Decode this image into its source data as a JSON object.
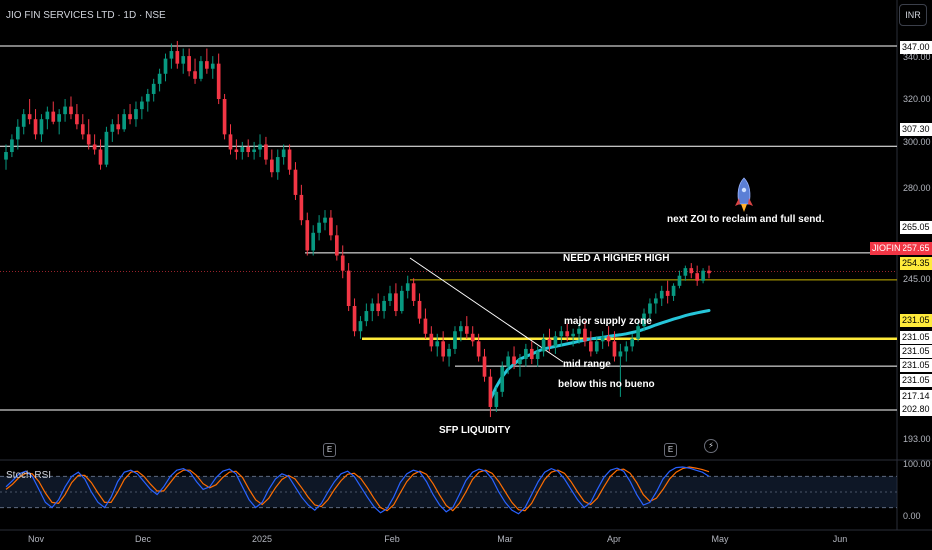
{
  "chart_data": {
    "type": "candlestick",
    "title": "JIO FIN SERVICES LTD · 1D · NSE",
    "currency": "INR",
    "ylim": [
      190,
      350
    ],
    "y_ticks": [
      "340.00",
      "320.00",
      "300.00",
      "280.00",
      "245.00",
      "193.00"
    ],
    "x_ticks": [
      "Nov",
      "Dec",
      "2025",
      "Feb",
      "Mar",
      "Apr",
      "May",
      "Jun"
    ],
    "price_levels": [
      {
        "label": "347.00",
        "value": 347.0,
        "color": "#ffffff"
      },
      {
        "label": "307.30",
        "value": 307.3,
        "color": "#ffffff"
      },
      {
        "label": "265.05",
        "value": 265.05,
        "color": "#ffffff"
      },
      {
        "label": "254.35",
        "value": 254.35,
        "color": "#ffeb3b"
      },
      {
        "label": "231.05",
        "value": 231.05,
        "color": "#ffeb3b"
      },
      {
        "label": "231.05",
        "value": 231.05,
        "color": "#ffffff"
      },
      {
        "label": "231.05",
        "value": 231.05,
        "color": "#ffffff"
      },
      {
        "label": "231.05",
        "value": 231.05,
        "color": "#ffffff"
      },
      {
        "label": "231.05",
        "value": 231.05,
        "color": "#ffffff"
      },
      {
        "label": "217.14",
        "value": 217.14,
        "color": "#ffffff"
      },
      {
        "label": "202.80",
        "value": 202.8,
        "color": "#ffffff"
      }
    ],
    "last_price": {
      "symbol": "JIOFIN",
      "value": "257.65",
      "color": "#f23645"
    },
    "annotations": [
      "next ZOI to reclaim and full send.",
      "NEED A HIGHER HIGH",
      "major supply zone",
      "mid range",
      "below this no bueno",
      "SFP LIQUIDITY"
    ],
    "event_markers": [
      "E",
      "E"
    ],
    "candle_colors": {
      "up": "#089981",
      "down": "#f23645"
    },
    "ma_color": "#26c6da",
    "candles": [
      {
        "o": 302,
        "h": 308,
        "l": 298,
        "c": 305
      },
      {
        "o": 305,
        "h": 312,
        "l": 303,
        "c": 310
      },
      {
        "o": 310,
        "h": 318,
        "l": 306,
        "c": 315
      },
      {
        "o": 315,
        "h": 322,
        "l": 312,
        "c": 320
      },
      {
        "o": 320,
        "h": 326,
        "l": 316,
        "c": 318
      },
      {
        "o": 318,
        "h": 322,
        "l": 310,
        "c": 312
      },
      {
        "o": 312,
        "h": 320,
        "l": 309,
        "c": 318
      },
      {
        "o": 318,
        "h": 323,
        "l": 314,
        "c": 321
      },
      {
        "o": 321,
        "h": 325,
        "l": 316,
        "c": 317
      },
      {
        "o": 317,
        "h": 322,
        "l": 312,
        "c": 320
      },
      {
        "o": 320,
        "h": 326,
        "l": 317,
        "c": 323
      },
      {
        "o": 323,
        "h": 327,
        "l": 318,
        "c": 320
      },
      {
        "o": 320,
        "h": 324,
        "l": 314,
        "c": 316
      },
      {
        "o": 316,
        "h": 320,
        "l": 310,
        "c": 312
      },
      {
        "o": 312,
        "h": 318,
        "l": 306,
        "c": 308
      },
      {
        "o": 308,
        "h": 312,
        "l": 304,
        "c": 306
      },
      {
        "o": 306,
        "h": 310,
        "l": 298,
        "c": 300
      },
      {
        "o": 300,
        "h": 315,
        "l": 299,
        "c": 313
      },
      {
        "o": 313,
        "h": 318,
        "l": 309,
        "c": 316
      },
      {
        "o": 316,
        "h": 320,
        "l": 312,
        "c": 314
      },
      {
        "o": 314,
        "h": 322,
        "l": 313,
        "c": 320
      },
      {
        "o": 320,
        "h": 324,
        "l": 316,
        "c": 318
      },
      {
        "o": 318,
        "h": 325,
        "l": 315,
        "c": 322
      },
      {
        "o": 322,
        "h": 327,
        "l": 318,
        "c": 325
      },
      {
        "o": 325,
        "h": 330,
        "l": 321,
        "c": 328
      },
      {
        "o": 328,
        "h": 334,
        "l": 325,
        "c": 332
      },
      {
        "o": 332,
        "h": 338,
        "l": 329,
        "c": 336
      },
      {
        "o": 336,
        "h": 344,
        "l": 333,
        "c": 342
      },
      {
        "o": 342,
        "h": 348,
        "l": 338,
        "c": 345
      },
      {
        "o": 345,
        "h": 349,
        "l": 338,
        "c": 340
      },
      {
        "o": 340,
        "h": 346,
        "l": 336,
        "c": 343
      },
      {
        "o": 343,
        "h": 346,
        "l": 335,
        "c": 337
      },
      {
        "o": 337,
        "h": 342,
        "l": 332,
        "c": 334
      },
      {
        "o": 334,
        "h": 343,
        "l": 333,
        "c": 341
      },
      {
        "o": 341,
        "h": 346,
        "l": 336,
        "c": 338
      },
      {
        "o": 338,
        "h": 343,
        "l": 334,
        "c": 340
      },
      {
        "o": 340,
        "h": 344,
        "l": 324,
        "c": 326
      },
      {
        "o": 326,
        "h": 328,
        "l": 310,
        "c": 312
      },
      {
        "o": 312,
        "h": 316,
        "l": 304,
        "c": 306
      },
      {
        "o": 306,
        "h": 310,
        "l": 302,
        "c": 305
      },
      {
        "o": 305,
        "h": 309,
        "l": 302,
        "c": 307
      },
      {
        "o": 307,
        "h": 310,
        "l": 303,
        "c": 305
      },
      {
        "o": 305,
        "h": 309,
        "l": 302,
        "c": 306
      },
      {
        "o": 306,
        "h": 312,
        "l": 303,
        "c": 308
      },
      {
        "o": 308,
        "h": 311,
        "l": 300,
        "c": 302
      },
      {
        "o": 302,
        "h": 306,
        "l": 295,
        "c": 297
      },
      {
        "o": 297,
        "h": 306,
        "l": 294,
        "c": 303
      },
      {
        "o": 303,
        "h": 308,
        "l": 300,
        "c": 306
      },
      {
        "o": 306,
        "h": 308,
        "l": 296,
        "c": 298
      },
      {
        "o": 298,
        "h": 301,
        "l": 286,
        "c": 288
      },
      {
        "o": 288,
        "h": 292,
        "l": 276,
        "c": 278
      },
      {
        "o": 278,
        "h": 281,
        "l": 264,
        "c": 266
      },
      {
        "o": 266,
        "h": 276,
        "l": 264,
        "c": 273
      },
      {
        "o": 273,
        "h": 280,
        "l": 270,
        "c": 277
      },
      {
        "o": 277,
        "h": 282,
        "l": 274,
        "c": 279
      },
      {
        "o": 279,
        "h": 282,
        "l": 270,
        "c": 272
      },
      {
        "o": 272,
        "h": 276,
        "l": 262,
        "c": 264
      },
      {
        "o": 264,
        "h": 268,
        "l": 255,
        "c": 258
      },
      {
        "o": 258,
        "h": 261,
        "l": 242,
        "c": 244
      },
      {
        "o": 244,
        "h": 247,
        "l": 232,
        "c": 234
      },
      {
        "o": 234,
        "h": 240,
        "l": 231,
        "c": 238
      },
      {
        "o": 238,
        "h": 245,
        "l": 236,
        "c": 242
      },
      {
        "o": 242,
        "h": 247,
        "l": 238,
        "c": 245
      },
      {
        "o": 245,
        "h": 249,
        "l": 240,
        "c": 242
      },
      {
        "o": 242,
        "h": 248,
        "l": 239,
        "c": 246
      },
      {
        "o": 246,
        "h": 252,
        "l": 244,
        "c": 249
      },
      {
        "o": 249,
        "h": 253,
        "l": 240,
        "c": 242
      },
      {
        "o": 242,
        "h": 252,
        "l": 241,
        "c": 250
      },
      {
        "o": 250,
        "h": 256,
        "l": 247,
        "c": 253
      },
      {
        "o": 253,
        "h": 255,
        "l": 244,
        "c": 246
      },
      {
        "o": 246,
        "h": 249,
        "l": 237,
        "c": 239
      },
      {
        "o": 239,
        "h": 243,
        "l": 231,
        "c": 233
      },
      {
        "o": 233,
        "h": 236,
        "l": 226,
        "c": 228
      },
      {
        "o": 228,
        "h": 233,
        "l": 224,
        "c": 230
      },
      {
        "o": 230,
        "h": 234,
        "l": 222,
        "c": 224
      },
      {
        "o": 224,
        "h": 229,
        "l": 220,
        "c": 227
      },
      {
        "o": 227,
        "h": 236,
        "l": 225,
        "c": 234
      },
      {
        "o": 234,
        "h": 238,
        "l": 230,
        "c": 236
      },
      {
        "o": 236,
        "h": 240,
        "l": 231,
        "c": 233
      },
      {
        "o": 233,
        "h": 236,
        "l": 228,
        "c": 230
      },
      {
        "o": 230,
        "h": 233,
        "l": 222,
        "c": 224
      },
      {
        "o": 224,
        "h": 227,
        "l": 214,
        "c": 216
      },
      {
        "o": 216,
        "h": 219,
        "l": 200,
        "c": 204
      },
      {
        "o": 204,
        "h": 212,
        "l": 202,
        "c": 210
      },
      {
        "o": 210,
        "h": 222,
        "l": 208,
        "c": 220
      },
      {
        "o": 220,
        "h": 226,
        "l": 217,
        "c": 224
      },
      {
        "o": 224,
        "h": 228,
        "l": 219,
        "c": 221
      },
      {
        "o": 221,
        "h": 225,
        "l": 216,
        "c": 223
      },
      {
        "o": 223,
        "h": 229,
        "l": 220,
        "c": 227
      },
      {
        "o": 227,
        "h": 230,
        "l": 221,
        "c": 223
      },
      {
        "o": 223,
        "h": 228,
        "l": 220,
        "c": 226
      },
      {
        "o": 226,
        "h": 233,
        "l": 224,
        "c": 231
      },
      {
        "o": 231,
        "h": 235,
        "l": 226,
        "c": 228
      },
      {
        "o": 228,
        "h": 234,
        "l": 225,
        "c": 232
      },
      {
        "o": 232,
        "h": 236,
        "l": 228,
        "c": 234
      },
      {
        "o": 234,
        "h": 237,
        "l": 230,
        "c": 232
      },
      {
        "o": 232,
        "h": 235,
        "l": 228,
        "c": 233
      },
      {
        "o": 233,
        "h": 237,
        "l": 229,
        "c": 235
      },
      {
        "o": 235,
        "h": 238,
        "l": 228,
        "c": 230
      },
      {
        "o": 230,
        "h": 234,
        "l": 224,
        "c": 226
      },
      {
        "o": 226,
        "h": 232,
        "l": 225,
        "c": 230
      },
      {
        "o": 230,
        "h": 234,
        "l": 227,
        "c": 232
      },
      {
        "o": 232,
        "h": 236,
        "l": 228,
        "c": 230
      },
      {
        "o": 230,
        "h": 234,
        "l": 222,
        "c": 224
      },
      {
        "o": 224,
        "h": 229,
        "l": 208,
        "c": 226
      },
      {
        "o": 226,
        "h": 230,
        "l": 222,
        "c": 228
      },
      {
        "o": 228,
        "h": 233,
        "l": 226,
        "c": 231
      },
      {
        "o": 231,
        "h": 238,
        "l": 230,
        "c": 236
      },
      {
        "o": 236,
        "h": 243,
        "l": 234,
        "c": 241
      },
      {
        "o": 241,
        "h": 247,
        "l": 239,
        "c": 245
      },
      {
        "o": 245,
        "h": 249,
        "l": 241,
        "c": 247
      },
      {
        "o": 247,
        "h": 252,
        "l": 244,
        "c": 250
      },
      {
        "o": 250,
        "h": 254,
        "l": 245,
        "c": 248
      },
      {
        "o": 248,
        "h": 253,
        "l": 246,
        "c": 252
      },
      {
        "o": 252,
        "h": 258,
        "l": 251,
        "c": 256
      },
      {
        "o": 256,
        "h": 260,
        "l": 254,
        "c": 259
      },
      {
        "o": 259,
        "h": 261,
        "l": 255,
        "c": 257
      },
      {
        "o": 257,
        "h": 260,
        "l": 252,
        "c": 254
      },
      {
        "o": 254,
        "h": 259,
        "l": 253,
        "c": 258
      },
      {
        "o": 258,
        "h": 260,
        "l": 255,
        "c": 257
      }
    ],
    "ma": [
      null,
      null,
      null,
      null,
      null,
      null,
      null,
      null,
      null,
      null,
      null,
      null,
      null,
      null,
      null,
      null,
      null,
      null,
      null,
      null,
      null,
      null,
      null,
      null,
      null,
      null,
      null,
      null,
      null,
      null,
      null,
      null,
      null,
      null,
      null,
      null,
      null,
      null,
      null,
      null,
      null,
      null,
      null,
      null,
      null,
      null,
      null,
      null,
      null,
      null,
      null,
      null,
      null,
      null,
      null,
      null,
      null,
      null,
      null,
      null,
      null,
      null,
      null,
      null,
      null,
      null,
      null,
      null,
      null,
      null,
      null,
      null,
      null,
      null,
      null,
      null,
      null,
      null,
      null,
      null,
      null,
      null,
      207,
      212,
      216,
      219,
      221,
      223,
      224,
      225,
      226,
      227,
      227.5,
      228,
      228.5,
      229,
      229.5,
      230,
      230.5,
      231,
      231.3,
      231.6,
      232,
      232.3,
      232.6,
      233,
      233.5,
      234,
      234.8,
      235.6,
      236.5,
      237.3,
      238,
      238.8,
      239.5,
      240.2,
      240.8,
      241.3,
      241.8,
      242.2
    ],
    "stoch": {
      "ylim": [
        0,
        100
      ],
      "y_ticks": [
        "100.00",
        "0.00"
      ],
      "title": "Stoch RSI",
      "k": [
        60,
        72,
        85,
        90,
        80,
        55,
        30,
        20,
        35,
        60,
        80,
        88,
        75,
        50,
        30,
        20,
        40,
        70,
        88,
        92,
        85,
        70,
        55,
        45,
        60,
        80,
        92,
        95,
        88,
        70,
        55,
        60,
        78,
        90,
        94,
        85,
        60,
        35,
        20,
        30,
        55,
        75,
        85,
        80,
        60,
        40,
        25,
        15,
        28,
        50,
        70,
        85,
        90,
        80,
        60,
        40,
        22,
        10,
        18,
        40,
        68,
        85,
        92,
        88,
        70,
        45,
        25,
        12,
        20,
        45,
        72,
        88,
        94,
        90,
        75,
        50,
        30,
        15,
        8,
        20,
        45,
        70,
        88,
        95,
        90,
        75,
        55,
        35,
        20,
        30,
        55,
        78,
        92,
        96,
        90,
        70,
        45,
        25,
        30,
        50,
        75,
        90,
        97,
        98,
        96,
        92,
        88,
        80
      ],
      "d": [
        55,
        65,
        78,
        86,
        85,
        70,
        48,
        30,
        28,
        45,
        68,
        82,
        82,
        68,
        48,
        30,
        30,
        50,
        74,
        88,
        90,
        80,
        65,
        52,
        52,
        68,
        84,
        92,
        92,
        82,
        66,
        58,
        64,
        78,
        88,
        90,
        78,
        55,
        35,
        26,
        38,
        58,
        74,
        82,
        75,
        58,
        40,
        25,
        22,
        35,
        55,
        72,
        84,
        86,
        76,
        58,
        38,
        20,
        14,
        25,
        48,
        70,
        84,
        90,
        84,
        66,
        44,
        24,
        14,
        28,
        50,
        74,
        88,
        92,
        86,
        70,
        50,
        30,
        16,
        14,
        28,
        52,
        74,
        88,
        92,
        86,
        70,
        50,
        32,
        26,
        38,
        60,
        80,
        92,
        94,
        86,
        68,
        45,
        32,
        38,
        55,
        75,
        88,
        95,
        98,
        96,
        93,
        89
      ]
    }
  }
}
